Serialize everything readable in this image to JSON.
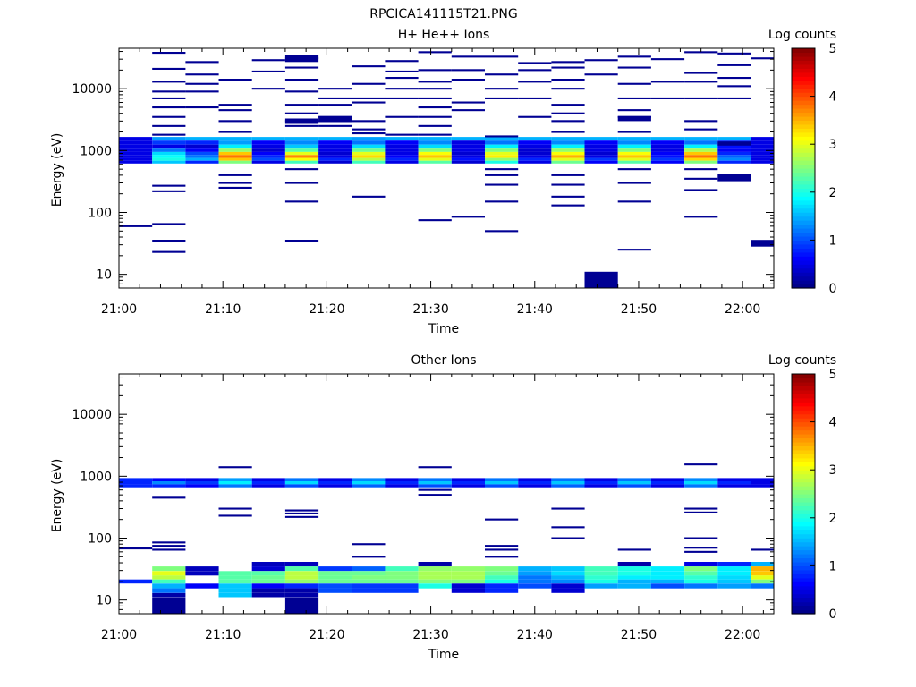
{
  "page_title": "RPCICA141115T21.PNG",
  "colormap": [
    "#00007f",
    "#0000ff",
    "#007fff",
    "#00ffff",
    "#7fff7f",
    "#ffff00",
    "#ff7f00",
    "#ff0000",
    "#7f0000"
  ],
  "chart_data": [
    {
      "type": "heatmap",
      "title": "H+ He++ Ions",
      "xlabel": "Time",
      "ylabel": "Energy (eV)",
      "x_ticks": [
        "21:00",
        "21:10",
        "21:20",
        "21:30",
        "21:40",
        "21:50",
        "22:00"
      ],
      "y_ticks": [
        "10",
        "100",
        "1000",
        "10000"
      ],
      "yscale": "log",
      "ylim": [
        6,
        45000
      ],
      "xlim_minutes": [
        0,
        63
      ],
      "colorbar": {
        "label": "Log counts",
        "ticks": [
          "0",
          "1",
          "2",
          "3",
          "4",
          "5"
        ],
        "range": [
          0,
          5
        ]
      },
      "time_bins_minutes": [
        0,
        3.2,
        6.4,
        9.6,
        12.8,
        16,
        19.2,
        22.4,
        25.6,
        28.8,
        32,
        35.2,
        38.4,
        41.6,
        44.8,
        48,
        51.2,
        54.4,
        57.6,
        60.8
      ],
      "base_band": {
        "energies": [
          1550,
          1350,
          1150,
          1000,
          900,
          800,
          720,
          650
        ],
        "levels": [
          [
            0.5,
            0.5,
            0.5,
            0.5,
            0.5,
            0.5,
            0.5,
            0.5
          ],
          [
            1.4,
            0.9,
            0.5,
            1.2,
            1.7,
            1.9,
            2.0,
            1.6
          ],
          [
            1.5,
            0.8,
            0.4,
            0.6,
            1.0,
            1.2,
            1.5,
            0.8
          ],
          [
            1.5,
            1.4,
            1.8,
            2.6,
            3.4,
            3.8,
            3.4,
            2.5
          ],
          [
            1.5,
            0.6,
            0.5,
            0.4,
            0.6,
            0.8,
            1.0,
            0.5
          ],
          [
            1.5,
            1.3,
            1.6,
            2.3,
            3.0,
            3.7,
            3.1,
            2.2
          ],
          [
            1.5,
            0.6,
            0.5,
            0.5,
            0.4,
            0.5,
            0.8,
            0.4
          ],
          [
            1.4,
            1.2,
            1.7,
            2.4,
            3.0,
            3.3,
            2.8,
            2.2
          ],
          [
            1.5,
            0.6,
            0.5,
            0.5,
            0.5,
            0.6,
            0.8,
            0.5
          ],
          [
            1.5,
            1.3,
            1.7,
            2.5,
            3.1,
            3.4,
            3.0,
            2.3
          ],
          [
            1.5,
            0.5,
            0.5,
            0.5,
            0.4,
            0.5,
            0.7,
            0.4
          ],
          [
            1.5,
            1.2,
            1.8,
            2.5,
            3.0,
            3.2,
            2.6,
            2.0
          ],
          [
            1.5,
            0.6,
            0.5,
            0.4,
            0.4,
            0.5,
            0.8,
            0.5
          ],
          [
            1.5,
            1.3,
            1.8,
            2.6,
            3.1,
            3.5,
            3.0,
            2.4
          ],
          [
            1.5,
            0.6,
            0.5,
            0.5,
            0.4,
            0.5,
            0.9,
            0.6
          ],
          [
            1.5,
            1.3,
            1.8,
            2.5,
            3.1,
            3.4,
            3.0,
            2.3
          ],
          [
            1.5,
            0.6,
            0.5,
            0.5,
            0.6,
            0.7,
            0.9,
            0.6
          ],
          [
            1.5,
            1.2,
            1.8,
            2.7,
            3.4,
            3.8,
            3.3,
            2.5
          ],
          [
            1.5,
            0.8,
            0.7,
            0.6,
            0.8,
            1.1,
            1.3,
            0.8
          ],
          [
            0.5,
            0.5,
            0.5,
            0.5,
            0.5,
            0.5,
            0.5,
            0.5
          ]
        ]
      },
      "sparse_lines": [
        [
          60
        ],
        [
          38000,
          21000,
          13000,
          9000,
          7000,
          5000,
          3500,
          2500,
          1800,
          270,
          220,
          65,
          35,
          23
        ],
        [
          27000,
          17000,
          12000,
          9000,
          5000
        ],
        [
          14000,
          5500,
          4500,
          3000,
          2000,
          400,
          300,
          250
        ],
        [
          29000,
          19000,
          10000
        ],
        [
          31000,
          22000,
          14000,
          9000,
          5500,
          4000,
          3000,
          2500,
          500,
          300,
          150,
          35
        ],
        [
          10000,
          7000,
          5500,
          3500,
          3000,
          2500
        ],
        [
          23000,
          12000,
          7000,
          6000,
          3000,
          2200,
          1900,
          180
        ],
        [
          28000,
          19000,
          15000,
          10000,
          7000,
          3500,
          1800
        ],
        [
          39000,
          20000,
          13000,
          10000,
          7000,
          5000,
          3500,
          2500,
          1800,
          75
        ],
        [
          33000,
          20000,
          14000,
          6000,
          4500,
          85
        ],
        [
          33000,
          17000,
          10000,
          7000,
          1700,
          500,
          400,
          280,
          150,
          50
        ],
        [
          26000,
          20000,
          13000,
          7000,
          3500
        ],
        [
          27000,
          22000,
          14000,
          10000,
          5500,
          4000,
          3000,
          2000,
          400,
          280,
          180,
          130
        ],
        [
          29000,
          17000
        ],
        [
          33000,
          22000,
          12000,
          7000,
          4500,
          3500,
          2000,
          500,
          300,
          150,
          25
        ],
        [
          30000,
          13000,
          7000
        ],
        [
          39000,
          18000,
          13000,
          7000,
          3000,
          2200,
          500,
          350,
          230,
          85
        ],
        [
          37000,
          24000,
          15000,
          11000,
          7000
        ],
        [
          31000
        ]
      ],
      "extra_blocks": [
        {
          "t0": 16.0,
          "t1": 19.2,
          "e0": 27000,
          "e1": 35000,
          "level": 0.1
        },
        {
          "t0": 16.0,
          "t1": 19.2,
          "e0": 2700,
          "e1": 3300,
          "level": 0.1
        },
        {
          "t0": 19.2,
          "t1": 22.4,
          "e0": 2900,
          "e1": 3600,
          "level": 0.1
        },
        {
          "t0": 44.8,
          "t1": 48.0,
          "e0": 6,
          "e1": 11,
          "level": 0.1
        },
        {
          "t0": 48.0,
          "t1": 51.2,
          "e0": 3000,
          "e1": 3600,
          "level": 0.1
        },
        {
          "t0": 57.6,
          "t1": 60.8,
          "e0": 1200,
          "e1": 1400,
          "level": 0.1
        },
        {
          "t0": 57.6,
          "t1": 60.8,
          "e0": 320,
          "e1": 420,
          "level": 0.1
        },
        {
          "t0": 60.8,
          "t1": 63.0,
          "e0": 28,
          "e1": 36,
          "level": 0.1
        }
      ]
    },
    {
      "type": "heatmap",
      "title": "Other Ions",
      "xlabel": "Time",
      "ylabel": "Energy (eV)",
      "x_ticks": [
        "21:00",
        "21:10",
        "21:20",
        "21:30",
        "21:40",
        "21:50",
        "22:00"
      ],
      "y_ticks": [
        "10",
        "100",
        "1000",
        "10000"
      ],
      "yscale": "log",
      "ylim": [
        6,
        45000
      ],
      "xlim_minutes": [
        0,
        63
      ],
      "colorbar": {
        "label": "Log counts",
        "ticks": [
          "0",
          "1",
          "2",
          "3",
          "4",
          "5"
        ],
        "range": [
          0,
          5
        ]
      },
      "time_bins_minutes": [
        0,
        3.2,
        6.4,
        9.6,
        12.8,
        16,
        19.2,
        22.4,
        25.6,
        28.8,
        32,
        35.2,
        38.4,
        41.6,
        44.8,
        48,
        51.2,
        54.4,
        57.6,
        60.8
      ],
      "base_band": {
        "energies": [
          880,
          780,
          700
        ],
        "levels": [
          [
            0.8,
            0.8,
            0.8
          ],
          [
            0.6,
            1.3,
            0.8
          ],
          [
            0.5,
            0.9,
            0.6
          ],
          [
            1.4,
            1.8,
            1.2
          ],
          [
            0.5,
            0.8,
            0.5
          ],
          [
            1.2,
            1.7,
            1.0
          ],
          [
            0.5,
            0.8,
            0.5
          ],
          [
            1.3,
            1.7,
            1.1
          ],
          [
            0.5,
            0.8,
            0.5
          ],
          [
            1.2,
            1.6,
            1.0
          ],
          [
            0.5,
            0.8,
            0.5
          ],
          [
            1.2,
            1.6,
            1.0
          ],
          [
            0.5,
            0.8,
            0.5
          ],
          [
            1.2,
            1.6,
            1.1
          ],
          [
            0.5,
            0.8,
            0.5
          ],
          [
            1.2,
            1.6,
            1.0
          ],
          [
            0.5,
            0.8,
            0.5
          ],
          [
            1.3,
            1.7,
            1.2
          ],
          [
            0.5,
            0.8,
            0.5
          ],
          [
            0.5,
            0.5,
            0.5
          ]
        ]
      },
      "low_band": {
        "energies": [
          38,
          32,
          27,
          23,
          20,
          17,
          14,
          12
        ],
        "levels": [
          [
            -1,
            -1,
            -1,
            -1,
            0.8,
            -1,
            -1,
            -1
          ],
          [
            -1,
            2.5,
            3.0,
            2.8,
            2.2,
            1.5,
            1.2,
            0.2
          ],
          [
            -1,
            0.3,
            0.3,
            -1,
            -1,
            0.6,
            -1,
            -1
          ],
          [
            -1,
            -1,
            2.3,
            2.3,
            2.3,
            1.6,
            1.6,
            1.6
          ],
          [
            0.3,
            0.4,
            2.3,
            2.4,
            2.4,
            0.6,
            0.2,
            0.2
          ],
          [
            0.3,
            2.3,
            2.8,
            2.8,
            2.6,
            0.8,
            0.2,
            0.2
          ],
          [
            -1,
            0.9,
            2.4,
            2.4,
            2.4,
            1.0,
            1.0,
            -1
          ],
          [
            -1,
            1.1,
            2.4,
            2.5,
            2.4,
            0.9,
            0.9,
            -1
          ],
          [
            -1,
            2.2,
            2.5,
            2.5,
            2.4,
            0.9,
            0.9,
            -1
          ],
          [
            0.2,
            2.6,
            2.7,
            2.7,
            2.5,
            2.0,
            -1,
            -1
          ],
          [
            -1,
            2.6,
            2.7,
            2.7,
            2.5,
            0.4,
            0.4,
            -1
          ],
          [
            -1,
            2.5,
            2.4,
            2.2,
            2.0,
            0.8,
            0.8,
            -1
          ],
          [
            -1,
            1.5,
            1.4,
            1.2,
            1.2,
            1.0,
            -1,
            -1
          ],
          [
            -1,
            1.6,
            1.7,
            1.5,
            1.3,
            0.4,
            0.4,
            -1
          ],
          [
            -1,
            2.2,
            2.2,
            2.1,
            2.0,
            1.4,
            -1,
            -1
          ],
          [
            0.2,
            2.0,
            2.0,
            1.8,
            1.5,
            1.5,
            -1,
            -1
          ],
          [
            -1,
            1.8,
            1.8,
            1.8,
            1.5,
            1.0,
            -1,
            -1
          ],
          [
            0.5,
            2.5,
            2.3,
            2.1,
            2.0,
            1.2,
            -1,
            -1
          ],
          [
            0.8,
            1.8,
            1.8,
            1.7,
            1.6,
            1.4,
            -1,
            -1
          ],
          [
            1.5,
            3.5,
            3.4,
            3.0,
            2.5,
            1.2,
            -1,
            -1
          ]
        ]
      },
      "sparse_lines": [
        [
          68
        ],
        [
          450,
          85,
          75,
          65
        ],
        [],
        [
          1400,
          300,
          230
        ],
        [],
        [
          280,
          250,
          220
        ],
        [],
        [
          80,
          50
        ],
        [],
        [
          1400,
          600,
          500
        ],
        [],
        [
          200,
          75,
          65,
          50
        ],
        [],
        [
          300,
          150,
          100
        ],
        [],
        [
          65
        ],
        [],
        [
          1550,
          300,
          260,
          100,
          70,
          60
        ],
        [],
        [
          65
        ]
      ],
      "extra_blocks": [
        {
          "t0": 3.2,
          "t1": 6.4,
          "e0": 6,
          "e1": 11,
          "level": 0.1
        },
        {
          "t0": 16.0,
          "t1": 19.2,
          "e0": 6,
          "e1": 11,
          "level": 0.1
        }
      ]
    }
  ]
}
